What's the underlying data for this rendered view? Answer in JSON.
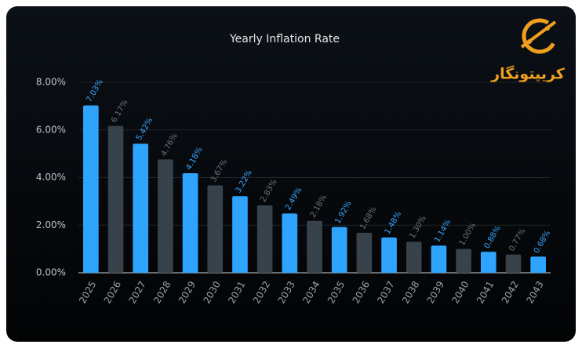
{
  "chart_data": {
    "type": "bar",
    "title": "Yearly Inflation Rate",
    "watermark": "کریپتونگار",
    "categories": [
      "2025",
      "2026",
      "2027",
      "2028",
      "2029",
      "2030",
      "2031",
      "2032",
      "2033",
      "2034",
      "2035",
      "2036",
      "2037",
      "2038",
      "2039",
      "2040",
      "2041",
      "2042",
      "2043"
    ],
    "values": [
      7.03,
      6.17,
      5.42,
      4.76,
      4.18,
      3.67,
      3.22,
      2.83,
      2.49,
      2.18,
      1.92,
      1.68,
      1.48,
      1.3,
      1.14,
      1.0,
      0.88,
      0.77,
      0.68
    ],
    "value_labels": [
      "7.03%",
      "6.17%",
      "5.42%",
      "4.76%",
      "4.18%",
      "3.67%",
      "3.22%",
      "2.83%",
      "2.49%",
      "2.18%",
      "1.92%",
      "1.68%",
      "1.48%",
      "1.30%",
      "1.14%",
      "1.00%",
      "0.88%",
      "0.77%",
      "0.68%"
    ],
    "colors": [
      "#2ea4ff",
      "#37424b",
      "#2ea4ff",
      "#37424b",
      "#2ea4ff",
      "#37424b",
      "#2ea4ff",
      "#37424b",
      "#2ea4ff",
      "#37424b",
      "#2ea4ff",
      "#37424b",
      "#2ea4ff",
      "#37424b",
      "#2ea4ff",
      "#37424b",
      "#2ea4ff",
      "#37424b",
      "#2ea4ff"
    ],
    "ylim": [
      0,
      8
    ],
    "yticks": [
      {
        "value": 0,
        "label": "0.00%"
      },
      {
        "value": 2,
        "label": "2.00%"
      },
      {
        "value": 4,
        "label": "4.00%"
      },
      {
        "value": 6,
        "label": "6.00%"
      },
      {
        "value": 8,
        "label": "8.00%"
      }
    ],
    "grid": true
  }
}
